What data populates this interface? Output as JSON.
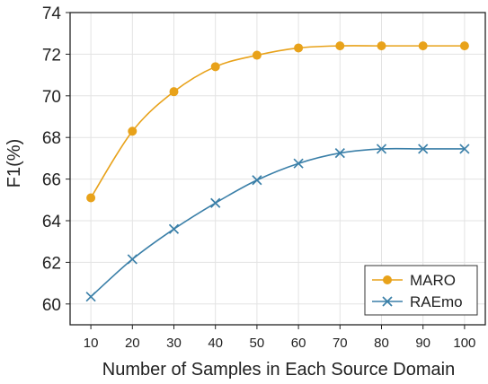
{
  "chart_data": {
    "type": "line",
    "xlabel": "Number of Samples in Each Source Domain",
    "ylabel": "F1(%)",
    "x": [
      10,
      20,
      30,
      40,
      50,
      60,
      70,
      80,
      90,
      100
    ],
    "xlim": [
      5,
      105
    ],
    "ylim": [
      59,
      74
    ],
    "yticks": [
      60,
      62,
      64,
      66,
      68,
      70,
      72,
      74
    ],
    "xticks": [
      10,
      20,
      30,
      40,
      50,
      60,
      70,
      80,
      90,
      100
    ],
    "grid": true,
    "legend_position": "bottom-right",
    "series": [
      {
        "name": "MARO",
        "marker": "circle",
        "color": "#E8A21A",
        "values": [
          65.1,
          68.3,
          70.2,
          71.4,
          71.95,
          72.3,
          72.4,
          72.4,
          72.4,
          72.4
        ]
      },
      {
        "name": "RAEmo",
        "marker": "x",
        "color": "#3A7FA8",
        "values": [
          60.35,
          62.15,
          63.6,
          64.85,
          65.95,
          66.75,
          67.25,
          67.45,
          67.45,
          67.45
        ]
      }
    ]
  }
}
